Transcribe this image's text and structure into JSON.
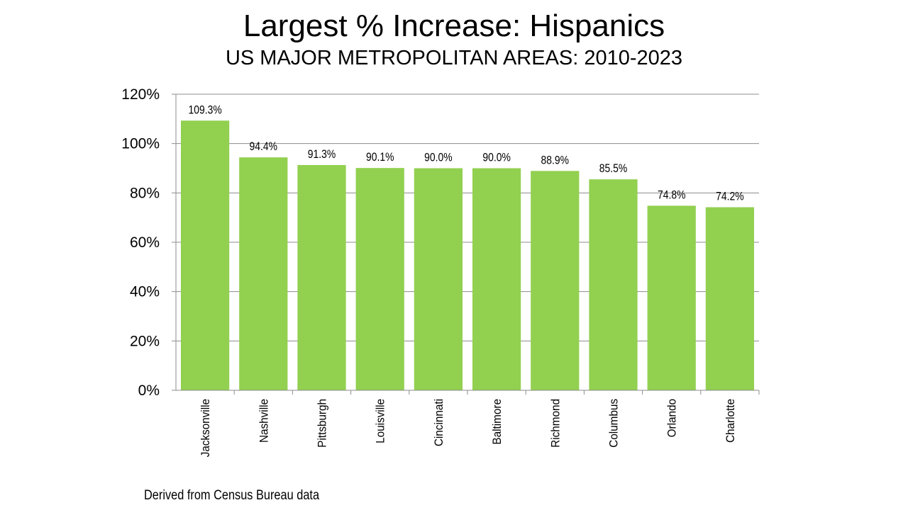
{
  "header": {
    "title": "Largest % Increase: Hispanics",
    "subtitle": "US MAJOR METROPOLITAN AREAS: 2010-2023"
  },
  "footnote": "Derived from Census Bureau data",
  "chart_data": {
    "type": "bar",
    "title": "Largest % Increase: Hispanics",
    "subtitle": "US MAJOR METROPOLITAN AREAS: 2010-2023",
    "categories": [
      "Jacksonville",
      "Nashville",
      "Pittsburgh",
      "Louisville",
      "Cincinnati",
      "Baltimore",
      "Richmond",
      "Columbus",
      "Orlando",
      "Charlotte"
    ],
    "values": [
      109.3,
      94.4,
      91.3,
      90.1,
      90.0,
      90.0,
      88.9,
      85.5,
      74.8,
      74.2
    ],
    "data_labels": [
      "109.3%",
      "94.4%",
      "91.3%",
      "90.1%",
      "90.0%",
      "90.0%",
      "88.9%",
      "85.5%",
      "74.8%",
      "74.2%"
    ],
    "yticks": [
      0,
      20,
      40,
      60,
      80,
      100,
      120
    ],
    "ytick_labels": [
      "0%",
      "20%",
      "40%",
      "60%",
      "80%",
      "100%",
      "120%"
    ],
    "ylim": [
      0,
      120
    ],
    "xlabel": "",
    "ylabel": "",
    "grid": true,
    "legend": "none",
    "bar_color": "#92d050",
    "grid_color": "#8c8c8c",
    "label_orientation": "vertical"
  }
}
